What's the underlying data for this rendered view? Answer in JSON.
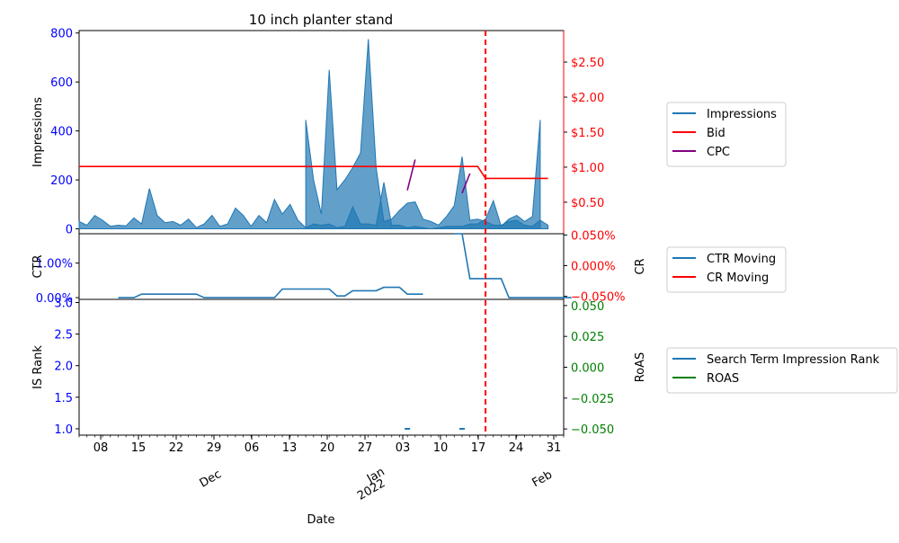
{
  "colors": {
    "impressions": "#1f77b4",
    "bid": "#ff0000",
    "cpc": "#800080",
    "ctr": "#1f77b4",
    "cr": "#ff0000",
    "rank": "#1f77b4",
    "roas": "#008000",
    "left_ticks": "#0000ff",
    "right_ticks_top": "#ff0000",
    "right_ticks_bottom": "#008000",
    "vline": "#ff0000"
  },
  "chart_data": {
    "title": "10 inch planter stand",
    "xlabel": "Date",
    "x_range": [
      "2021-12-04",
      "2022-02-01"
    ],
    "vline_date": "2022-01-25",
    "x_day_ticks": [
      "08",
      "15",
      "22",
      "29",
      "06",
      "13",
      "20",
      "27",
      "03",
      "10",
      "17",
      "24",
      "31"
    ],
    "x_month_labels": [
      {
        "date": "2021-12-01",
        "label": "Dec"
      },
      {
        "date": "2022-01-01",
        "label": "Jan"
      },
      {
        "date": "2022-01-01",
        "label": "2022"
      },
      {
        "date": "2022-02-01",
        "label": "Feb"
      }
    ],
    "panels": [
      {
        "type": "area+line",
        "ylabel": "Impressions",
        "ylim": [
          -20,
          810
        ],
        "yticks": [
          0,
          200,
          400,
          600,
          800
        ],
        "y2lim": [
          0.05,
          2.95
        ],
        "y2ticks": [
          "$0.50",
          "$1.00",
          "$1.50",
          "$2.00",
          "$2.50"
        ],
        "y2tick_values": [
          0.5,
          1.0,
          1.5,
          2.0,
          2.5
        ],
        "series": [
          {
            "name": "Impressions",
            "type": "area",
            "axis": "left",
            "points": [
              [
                "2021-12-04",
                30
              ],
              [
                "2021-12-05",
                15
              ],
              [
                "2021-12-06",
                55
              ],
              [
                "2021-12-07",
                35
              ],
              [
                "2021-12-08",
                10
              ],
              [
                "2021-12-09",
                15
              ],
              [
                "2021-12-10",
                12
              ],
              [
                "2021-12-11",
                45
              ],
              [
                "2021-12-12",
                20
              ],
              [
                "2021-12-13",
                165
              ],
              [
                "2021-12-14",
                55
              ],
              [
                "2021-12-15",
                25
              ],
              [
                "2021-12-16",
                30
              ],
              [
                "2021-12-17",
                15
              ],
              [
                "2021-12-18",
                40
              ],
              [
                "2021-12-19",
                5
              ],
              [
                "2021-12-20",
                20
              ],
              [
                "2021-12-21",
                55
              ],
              [
                "2021-12-22",
                10
              ],
              [
                "2021-12-23",
                20
              ],
              [
                "2021-12-24",
                85
              ],
              [
                "2021-12-25",
                55
              ],
              [
                "2021-12-26",
                10
              ],
              [
                "2021-12-27",
                55
              ],
              [
                "2021-12-28",
                25
              ],
              [
                "2021-12-29",
                120
              ],
              [
                "2021-12-30",
                60
              ],
              [
                "2021-12-31",
                100
              ],
              [
                "2022-01-01",
                35
              ],
              [
                "2022-01-02",
                5
              ],
              [
                "2022-01-03",
                20
              ],
              [
                "2022-01-04",
                15
              ],
              [
                "2022-01-05",
                20
              ],
              [
                "2022-01-06",
                5
              ],
              [
                "2022-01-07",
                10
              ],
              [
                "2022-01-08",
                90
              ],
              [
                "2022-01-09",
                20
              ],
              [
                "2022-01-10",
                20
              ],
              [
                "2022-01-11",
                15
              ],
              [
                "2022-01-12",
                190
              ],
              [
                "2022-01-13",
                15
              ],
              [
                "2022-01-14",
                15
              ],
              [
                "2022-01-15",
                5
              ],
              [
                "2022-01-16",
                10
              ],
              [
                "2022-01-17",
                5
              ],
              [
                "2022-01-18",
                0
              ],
              [
                "2022-01-19",
                5
              ],
              [
                "2022-01-20",
                10
              ],
              [
                "2022-01-21",
                10
              ],
              [
                "2022-01-22",
                10
              ],
              [
                "2022-01-23",
                20
              ],
              [
                "2022-01-24",
                20
              ],
              [
                "2022-01-25",
                40
              ],
              [
                "2022-01-26",
                115
              ],
              [
                "2022-01-27",
                10
              ],
              [
                "2022-01-28",
                40
              ],
              [
                "2022-01-29",
                55
              ],
              [
                "2022-01-30",
                30
              ],
              [
                "2022-01-31",
                50
              ],
              [
                "2022-02-01",
                445
              ]
            ],
            "points_jan2": [
              [
                "2022-01-02",
                445
              ],
              [
                "2022-01-03",
                200
              ],
              [
                "2022-01-04",
                60
              ],
              [
                "2022-01-05",
                650
              ],
              [
                "2022-01-06",
                160
              ],
              [
                "2022-01-07",
                200
              ],
              [
                "2022-01-08",
                250
              ],
              [
                "2022-01-09",
                310
              ],
              [
                "2022-01-10",
                775
              ],
              [
                "2022-01-11",
                250
              ],
              [
                "2022-01-12",
                30
              ],
              [
                "2022-01-13",
                40
              ],
              [
                "2022-01-14",
                75
              ],
              [
                "2022-01-15",
                105
              ],
              [
                "2022-01-16",
                110
              ],
              [
                "2022-01-17",
                40
              ],
              [
                "2022-01-18",
                30
              ],
              [
                "2022-01-19",
                15
              ],
              [
                "2022-01-20",
                50
              ],
              [
                "2022-01-21",
                95
              ],
              [
                "2022-01-22",
                295
              ],
              [
                "2022-01-23",
                35
              ],
              [
                "2022-01-24",
                40
              ],
              [
                "2022-01-25",
                30
              ],
              [
                "2022-01-26",
                15
              ],
              [
                "2022-01-27",
                15
              ],
              [
                "2022-01-28",
                30
              ],
              [
                "2022-01-29",
                35
              ],
              [
                "2022-01-30",
                15
              ],
              [
                "2022-01-31",
                10
              ],
              [
                "2022-02-01",
                35
              ],
              [
                "2022-02-02",
                15
              ]
            ]
          },
          {
            "name": "Bid",
            "type": "line",
            "axis": "right",
            "points": [
              [
                "2021-12-04",
                1.01
              ],
              [
                "2022-01-24",
                1.01
              ],
              [
                "2022-01-25",
                0.84
              ],
              [
                "2022-02-02",
                0.84
              ]
            ]
          },
          {
            "name": "CPC",
            "type": "line",
            "axis": "right",
            "segments": [
              [
                [
                  "2022-01-15",
                  0.67
                ],
                [
                  "2022-01-16",
                  1.11
                ]
              ],
              [
                [
                  "2022-01-22",
                  0.63
                ],
                [
                  "2022-01-23",
                  0.91
                ]
              ]
            ]
          }
        ]
      },
      {
        "type": "line",
        "ylabel": "CTR",
        "y2label": "CR",
        "ylim": [
          -0.0005,
          0.0185
        ],
        "yticks": [
          "0.00%",
          "1.00%"
        ],
        "ytick_values": [
          0.0,
          0.01
        ],
        "y2lim": [
          -0.055,
          0.052
        ],
        "y2ticks": [
          "−0.050%",
          "0.000%",
          "0.050%"
        ],
        "y2tick_values": [
          -0.05,
          0.0,
          0.05
        ],
        "series": [
          {
            "name": "CTR Moving",
            "type": "line",
            "axis": "left",
            "points": [
              [
                "2021-12-09",
                0.0
              ],
              [
                "2021-12-11",
                0.0
              ],
              [
                "2021-12-12",
                0.001
              ],
              [
                "2021-12-19",
                0.001
              ],
              [
                "2021-12-20",
                0.0
              ],
              [
                "2021-12-29",
                0.0
              ],
              [
                "2021-12-30",
                0.0025
              ],
              [
                "2022-01-05",
                0.0025
              ],
              [
                "2022-01-06",
                0.0005
              ],
              [
                "2022-01-07",
                0.0005
              ],
              [
                "2022-01-08",
                0.002
              ],
              [
                "2022-01-11",
                0.002
              ],
              [
                "2022-01-12",
                0.003
              ],
              [
                "2022-01-14",
                0.003
              ],
              [
                "2022-01-15",
                0.001
              ],
              [
                "2022-01-17",
                0.001
              ]
            ],
            "points_late": [
              [
                "2022-01-21",
                0.02
              ],
              [
                "2022-01-22",
                0.02
              ],
              [
                "2022-01-23",
                0.0055
              ],
              [
                "2022-01-25",
                0.0055
              ],
              [
                "2022-01-26",
                0.0055
              ],
              [
                "2022-01-27",
                0.0055
              ],
              [
                "2022-01-28",
                0.0
              ],
              [
                "2022-01-29",
                0.0
              ],
              [
                "2022-02-01",
                0.0
              ],
              [
                "2022-02-02",
                0.0
              ],
              [
                "2022-02-03",
                0.0
              ],
              [
                "2022-02-04",
                0.0
              ],
              [
                "2022-02-05",
                0.0
              ]
            ]
          }
        ]
      },
      {
        "type": "line",
        "ylabel": "IS Rank",
        "y2label": "RoAS",
        "ylim": [
          0.9,
          3.05
        ],
        "yticks": [
          1.0,
          1.5,
          2.0,
          2.5,
          3.0
        ],
        "y2lim": [
          -0.055,
          0.055
        ],
        "y2ticks": [
          -0.05,
          -0.025,
          0.0,
          0.025,
          0.05
        ],
        "series": [
          {
            "name": "Search Term Impression Rank",
            "type": "marker",
            "axis": "left",
            "points": [
              [
                "2022-01-15",
                1.0
              ],
              [
                "2022-01-22",
                1.0
              ]
            ]
          }
        ]
      }
    ],
    "legends": [
      [
        "Impressions",
        "Bid",
        "CPC"
      ],
      [
        "CTR Moving",
        "CR Moving"
      ],
      [
        "Search Term Impression Rank",
        "ROAS"
      ]
    ]
  }
}
